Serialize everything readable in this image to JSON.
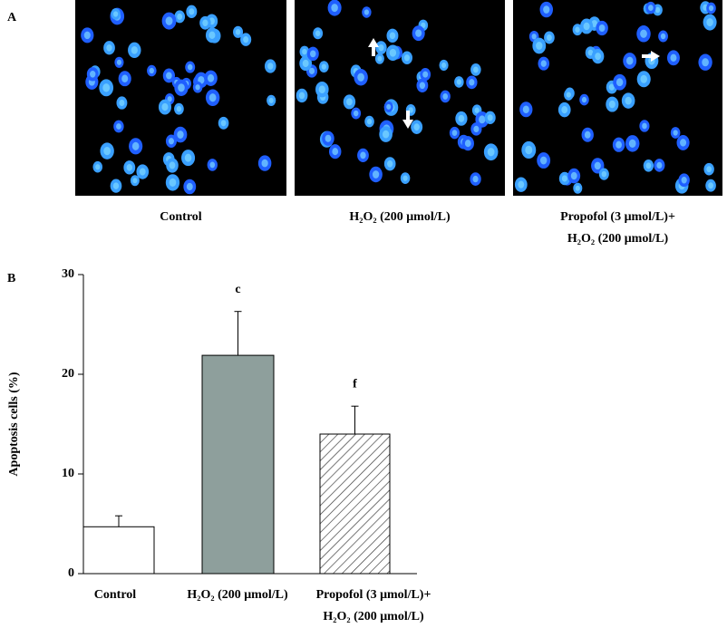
{
  "panel_a": {
    "label": "A",
    "captions": [
      "Control",
      "H₂O₂ (200 μmol/L)",
      "Propofol (3 μmol/L)+\nH₂O₂ (200 μmol/L)"
    ]
  },
  "chart_data": {
    "type": "bar",
    "panel_label": "B",
    "y_label": "Apoptosis cells (%)",
    "categories": [
      "Control",
      "H₂O₂ (200 μmol/L)",
      "Propofol (3 μmol/L)+\nH₂O₂ (200 μmol/L)"
    ],
    "values": [
      4.7,
      21.9,
      14.0
    ],
    "errors": [
      1.1,
      4.4,
      2.8
    ],
    "annotations": [
      null,
      "c",
      "f"
    ],
    "colors": [
      "#ffffff",
      "#8e9f9c",
      "#ffffff"
    ],
    "patterns": [
      null,
      null,
      "diagonal"
    ],
    "ylim": [
      0,
      30
    ],
    "yticks": [
      0,
      10,
      20,
      30
    ]
  }
}
